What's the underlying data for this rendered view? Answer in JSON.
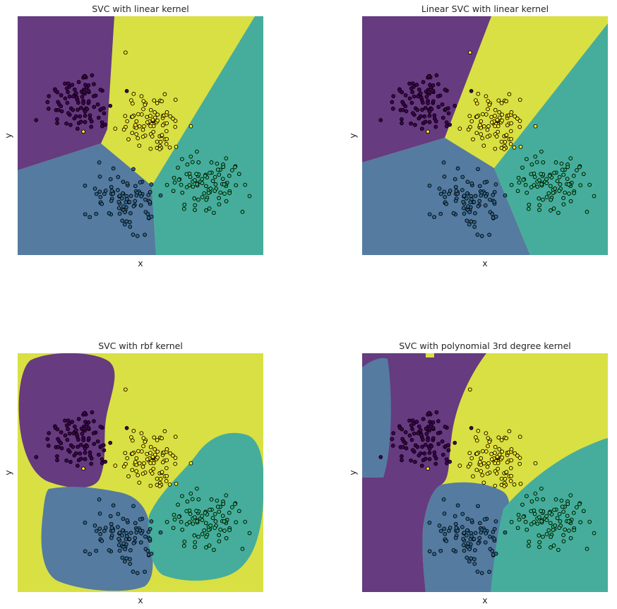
{
  "colors": {
    "purple": "#663b80",
    "blue": "#557ba0",
    "teal": "#46ad9c",
    "yellow": "#d9e043",
    "pt_purple": "#440154",
    "pt_blue": "#31688e",
    "pt_teal": "#35b779",
    "pt_yellow": "#fde725",
    "edge": "#000000"
  },
  "chart_data": [
    {
      "type": "scatter",
      "title": "SVC with linear kernel",
      "xlabel": "x",
      "ylabel": "y",
      "grid": false,
      "legend": "none",
      "background": "decision regions"
    },
    {
      "type": "scatter",
      "title": "Linear SVC with linear kernel",
      "xlabel": "x",
      "ylabel": "y",
      "grid": false,
      "legend": "none",
      "background": "decision regions"
    },
    {
      "type": "scatter",
      "title": "SVC with rbf kernel",
      "xlabel": "x",
      "ylabel": "y",
      "grid": false,
      "legend": "none",
      "background": "decision regions"
    },
    {
      "type": "scatter",
      "title": "SVC with polynomial 3rd degree kernel",
      "xlabel": "x",
      "ylabel": "y",
      "grid": false,
      "legend": "none",
      "background": "decision regions"
    }
  ]
}
